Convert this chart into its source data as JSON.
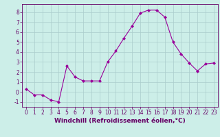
{
  "x": [
    0,
    1,
    2,
    3,
    4,
    5,
    6,
    7,
    8,
    9,
    10,
    11,
    12,
    13,
    14,
    15,
    16,
    17,
    18,
    19,
    20,
    21,
    22,
    23
  ],
  "y": [
    0.3,
    -0.3,
    -0.3,
    -0.8,
    -1.0,
    2.6,
    1.5,
    1.1,
    1.1,
    1.1,
    3.0,
    4.1,
    5.4,
    6.6,
    7.9,
    8.2,
    8.2,
    7.5,
    5.0,
    3.8,
    2.9,
    2.1,
    2.8,
    2.9
  ],
  "line_color": "#990099",
  "marker": "D",
  "marker_size": 2,
  "bg_color": "#cceee8",
  "grid_color": "#aacccc",
  "xlabel": "Windchill (Refroidissement éolien,°C)",
  "xlim": [
    -0.5,
    23.5
  ],
  "ylim": [
    -1.5,
    8.8
  ],
  "yticks": [
    -1,
    0,
    1,
    2,
    3,
    4,
    5,
    6,
    7,
    8
  ],
  "xticks": [
    0,
    1,
    2,
    3,
    4,
    5,
    6,
    7,
    8,
    9,
    10,
    11,
    12,
    13,
    14,
    15,
    16,
    17,
    18,
    19,
    20,
    21,
    22,
    23
  ],
  "axis_color": "#660066",
  "tick_color": "#660066",
  "label_fontsize": 6.5,
  "tick_fontsize": 5.5
}
